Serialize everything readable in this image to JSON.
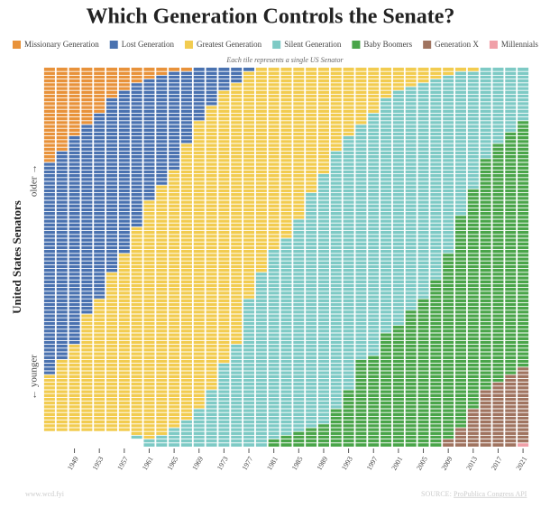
{
  "chart_data": {
    "type": "tile-stack",
    "title": "Which Generation Controls the Senate?",
    "subtitle": "Each tile represents a single US Senator",
    "y_label": "United States Senators",
    "older_label": "older →",
    "younger_label": "← younger",
    "site": "www.wcd.fyi",
    "source_prefix": "SOURCE: ",
    "source_link": "ProPublica Congress API",
    "x": [
      1945,
      1947,
      1949,
      1951,
      1953,
      1955,
      1957,
      1959,
      1961,
      1963,
      1965,
      1967,
      1969,
      1971,
      1973,
      1975,
      1977,
      1979,
      1981,
      1983,
      1985,
      1987,
      1989,
      1991,
      1993,
      1995,
      1997,
      1999,
      2001,
      2003,
      2005,
      2007,
      2009,
      2011,
      2013,
      2015,
      2017,
      2019,
      2021
    ],
    "xlim": [
      1944,
      2022
    ],
    "xticks": [
      1949,
      1953,
      1957,
      1961,
      1965,
      1969,
      1973,
      1977,
      1981,
      1985,
      1989,
      1993,
      1997,
      2001,
      2005,
      2009,
      2013,
      2017,
      2021
    ],
    "ylim": [
      0,
      100
    ],
    "series": [
      {
        "name": "Missionary Generation",
        "color": "#e8923a",
        "values": [
          25,
          22,
          18,
          15,
          12,
          8,
          6,
          4,
          3,
          2,
          1,
          1,
          0,
          0,
          0,
          0,
          0,
          0,
          0,
          0,
          0,
          0,
          0,
          0,
          0,
          0,
          0,
          0,
          0,
          0,
          0,
          0,
          0,
          0,
          0,
          0,
          0,
          0,
          0
        ]
      },
      {
        "name": "Lost Generation",
        "color": "#4a72b0",
        "values": [
          56,
          55,
          55,
          50,
          49,
          46,
          43,
          38,
          32,
          29,
          26,
          19,
          14,
          10,
          6,
          4,
          1,
          0,
          0,
          0,
          0,
          0,
          0,
          0,
          0,
          0,
          0,
          0,
          0,
          0,
          0,
          0,
          0,
          0,
          0,
          0,
          0,
          0,
          0
        ]
      },
      {
        "name": "Greatest Generation",
        "color": "#f2cc50",
        "values": [
          15,
          19,
          23,
          31,
          35,
          42,
          47,
          55,
          63,
          66,
          68,
          73,
          76,
          75,
          72,
          69,
          60,
          54,
          48,
          45,
          40,
          33,
          28,
          22,
          18,
          15,
          12,
          8,
          6,
          5,
          4,
          3,
          2,
          1,
          1,
          0,
          0,
          0,
          0
        ]
      },
      {
        "name": "Silent Generation",
        "color": "#7ecac5",
        "values": [
          0,
          0,
          0,
          0,
          0,
          0,
          0,
          1,
          2,
          3,
          5,
          7,
          10,
          15,
          22,
          27,
          39,
          46,
          50,
          52,
          56,
          62,
          66,
          68,
          67,
          62,
          64,
          62,
          62,
          59,
          57,
          53,
          47,
          38,
          31,
          24,
          20,
          17,
          14
        ]
      },
      {
        "name": "Baby Boomers",
        "color": "#4aa54a",
        "values": [
          0,
          0,
          0,
          0,
          0,
          0,
          0,
          0,
          0,
          0,
          0,
          0,
          0,
          0,
          0,
          0,
          0,
          0,
          2,
          3,
          4,
          5,
          6,
          10,
          15,
          23,
          24,
          30,
          32,
          36,
          39,
          44,
          49,
          56,
          58,
          61,
          63,
          64,
          65
        ]
      },
      {
        "name": "Generation X",
        "color": "#a07460",
        "values": [
          0,
          0,
          0,
          0,
          0,
          0,
          0,
          0,
          0,
          0,
          0,
          0,
          0,
          0,
          0,
          0,
          0,
          0,
          0,
          0,
          0,
          0,
          0,
          0,
          0,
          0,
          0,
          0,
          0,
          0,
          0,
          0,
          2,
          5,
          10,
          15,
          17,
          19,
          20
        ]
      },
      {
        "name": "Millennials",
        "color": "#f0a0a8",
        "values": [
          0,
          0,
          0,
          0,
          0,
          0,
          0,
          0,
          0,
          0,
          0,
          0,
          0,
          0,
          0,
          0,
          0,
          0,
          0,
          0,
          0,
          0,
          0,
          0,
          0,
          0,
          0,
          0,
          0,
          0,
          0,
          0,
          0,
          0,
          0,
          0,
          0,
          0,
          1
        ]
      }
    ]
  }
}
